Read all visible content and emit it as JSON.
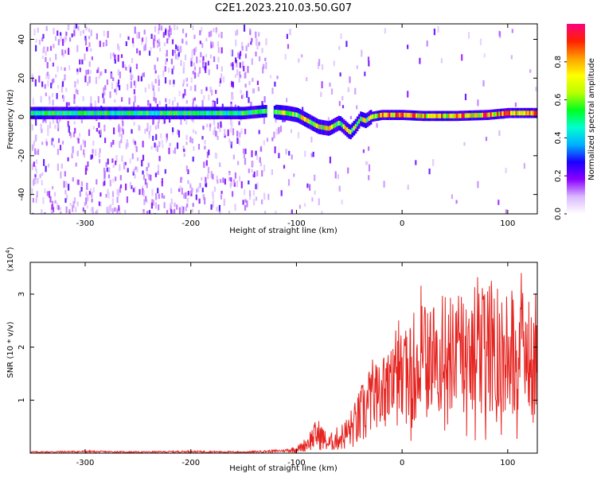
{
  "title": "C2E1.2023.210.03.50.G07",
  "colors": {
    "snr_line": "#e52420",
    "axis": "#000000"
  },
  "chart_data": [
    {
      "type": "heatmap",
      "xlabel": "Height of straight line (km)",
      "ylabel": "Frequency (Hz)",
      "xlim": [
        -352,
        128
      ],
      "ylim": [
        -50,
        48
      ],
      "x_ticks": [
        {
          "value": -300,
          "label": "-300"
        },
        {
          "value": -200,
          "label": "-200"
        },
        {
          "value": -100,
          "label": "-100"
        },
        {
          "value": 0,
          "label": "0"
        },
        {
          "value": 100,
          "label": "100"
        }
      ],
      "y_ticks": [
        {
          "value": 40,
          "label": "40"
        },
        {
          "value": 20,
          "label": "20"
        },
        {
          "value": 0,
          "label": "0"
        },
        {
          "value": -20,
          "label": "-20"
        },
        {
          "value": -40,
          "label": "-40"
        }
      ],
      "ridge_frequency": {
        "x": [
          -352,
          -300,
          -250,
          -200,
          -150,
          -130,
          -110,
          -100,
          -90,
          -80,
          -70,
          -60,
          -50,
          -45,
          -40,
          -35,
          -30,
          -20,
          -10,
          0,
          20,
          50,
          80,
          100,
          128
        ],
        "y": [
          2,
          2,
          2,
          2,
          2,
          3,
          2,
          1,
          -2,
          -5,
          -6,
          -3,
          -8,
          -5,
          -1,
          -2,
          0,
          1,
          1,
          1,
          0.5,
          0.5,
          1,
          2,
          2
        ]
      },
      "colorbar": {
        "label": "Normalized spectral amplitude",
        "range": [
          0,
          1
        ],
        "ticks": [
          {
            "value": 0.0,
            "label": "0.0"
          },
          {
            "value": 0.2,
            "label": "0.2"
          },
          {
            "value": 0.4,
            "label": "0.4"
          },
          {
            "value": 0.6,
            "label": "0.6"
          },
          {
            "value": 0.8,
            "label": "0.8"
          }
        ],
        "colors": [
          "#ffffff",
          "#d9b8ff",
          "#8a00ff",
          "#1a00ff",
          "#00b0ff",
          "#00ffd0",
          "#00ff20",
          "#b8ff00",
          "#ffff00",
          "#ffa000",
          "#ff2000",
          "#ff0080"
        ]
      }
    },
    {
      "type": "line",
      "xlabel": "Height of straight line (km)",
      "ylabel": "SNR (10 * v/v)",
      "scale_label": "(x10",
      "scale_exponent": "4",
      "scale_close": ")",
      "xlim": [
        -352,
        128
      ],
      "ylim": [
        0,
        3.6
      ],
      "x_ticks": [
        {
          "value": -300,
          "label": "-300"
        },
        {
          "value": -200,
          "label": "-200"
        },
        {
          "value": -100,
          "label": "-100"
        },
        {
          "value": 0,
          "label": "0"
        },
        {
          "value": 100,
          "label": "100"
        }
      ],
      "y_ticks": [
        {
          "value": 1,
          "label": "1"
        },
        {
          "value": 2,
          "label": "2"
        },
        {
          "value": 3,
          "label": "3"
        }
      ],
      "series": [
        {
          "name": "SNR",
          "x": [
            -352,
            -300,
            -250,
            -200,
            -150,
            -120,
            -110,
            -100,
            -95,
            -90,
            -85,
            -80,
            -75,
            -70,
            -65,
            -60,
            -55,
            -50,
            -45,
            -40,
            -35,
            -30,
            -25,
            -20,
            -15,
            -10,
            -5,
            0,
            5,
            10,
            15,
            20,
            25,
            30,
            40,
            50,
            60,
            70,
            80,
            90,
            100,
            110,
            120,
            128
          ],
          "y": [
            0.02,
            0.03,
            0.02,
            0.03,
            0.02,
            0.04,
            0.05,
            0.08,
            0.12,
            0.2,
            0.3,
            0.38,
            0.3,
            0.18,
            0.25,
            0.3,
            0.35,
            0.45,
            0.55,
            0.7,
            0.85,
            1.0,
            1.1,
            1.2,
            1.25,
            1.35,
            1.45,
            1.5,
            1.6,
            1.7,
            1.8,
            1.85,
            1.9,
            1.95,
            2.0,
            2.0,
            2.05,
            2.1,
            2.05,
            2.1,
            2.15,
            2.05,
            2.0,
            1.95
          ]
        }
      ]
    }
  ]
}
